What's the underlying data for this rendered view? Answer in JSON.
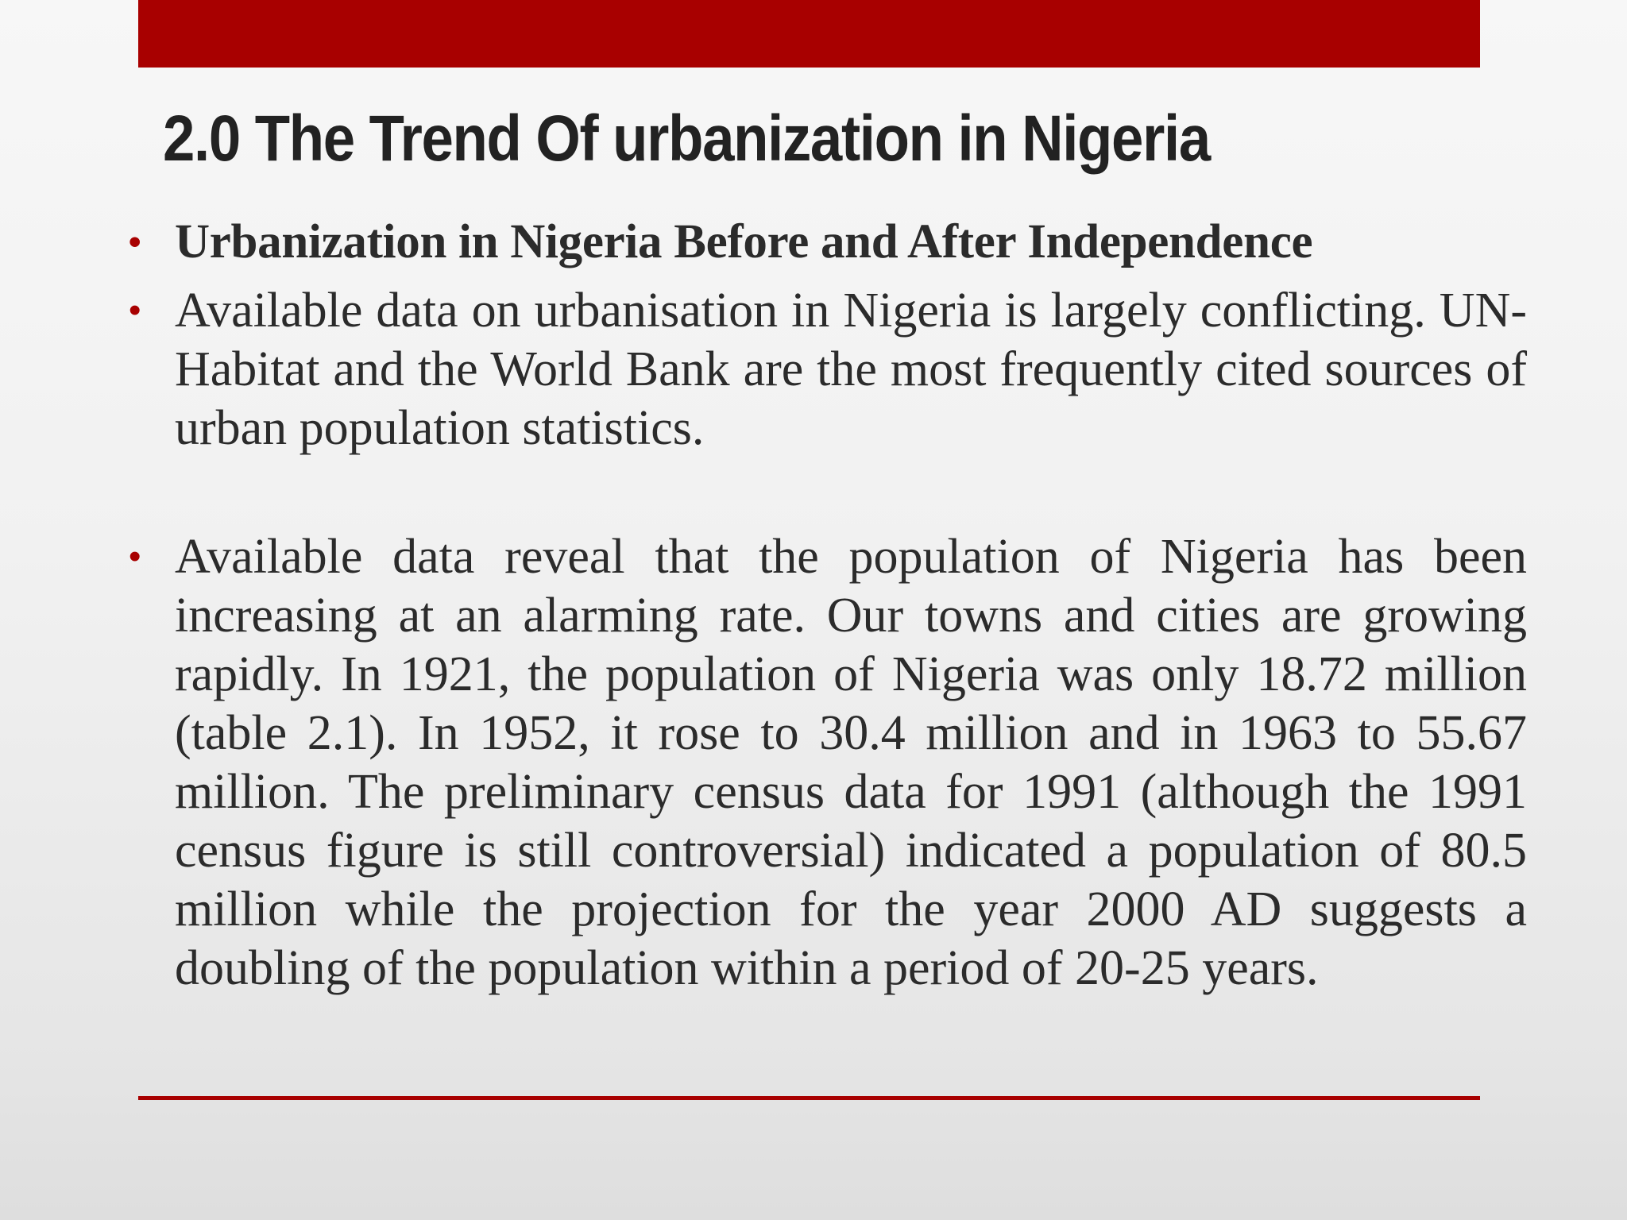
{
  "slide": {
    "title": "2.0 The Trend Of urbanization in Nigeria",
    "bullets": [
      {
        "text": "Urbanization in Nigeria Before and After Independence"
      },
      {
        "text": "Available data on urbanisation in Nigeria is largely conflicting. UN-Habitat and the World Bank are the most frequently cited sources of urban population statistics."
      },
      {
        "text": "Available data reveal that the population of Nigeria has been increasing at an alarming rate. Our towns and cities are growing rapidly. In 1921, the population of Nigeria was only 18.72 million (table 2.1). In 1952, it rose to 30.4 million and in 1963 to 55.67 million. The preliminary census data for 1991 (although the 1991 census figure is still controversial) indicated a population of 80.5 million while the projection for the year 2000 AD suggests a doubling of the population within a period of 20-25 years."
      }
    ],
    "bullet_glyph": "•"
  },
  "colors": {
    "accent": "#a80000",
    "title_text": "#222222",
    "body_text": "#2b2b2b",
    "background": "#f1f1f1"
  }
}
